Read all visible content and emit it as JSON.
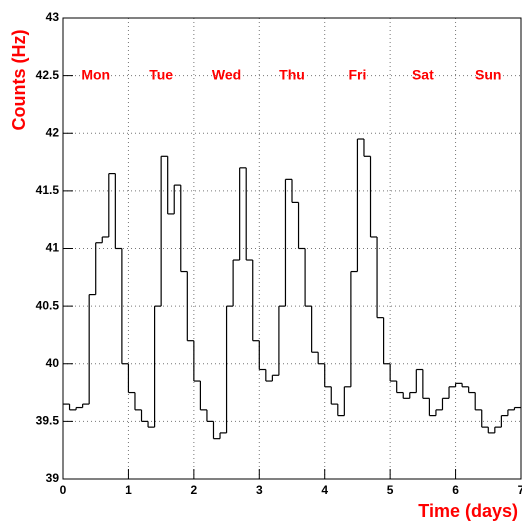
{
  "chart_data": {
    "type": "histogram",
    "x_label": "Time (days)",
    "y_label": "Counts (Hz)",
    "day_labels": [
      "Mon",
      "Tue",
      "Wed",
      "Thu",
      "Fri",
      "Sat",
      "Sun"
    ],
    "bins": [
      0,
      0.1,
      0.2,
      0.3,
      0.4,
      0.5,
      0.6,
      0.7,
      0.8,
      0.9,
      1,
      1.1,
      1.2,
      1.3,
      1.4,
      1.5,
      1.6,
      1.7,
      1.8,
      1.9,
      2,
      2.1,
      2.2,
      2.3,
      2.4,
      2.5,
      2.6,
      2.7,
      2.8,
      2.9,
      3,
      3.1,
      3.2,
      3.3,
      3.4,
      3.5,
      3.6,
      3.7,
      3.8,
      3.9,
      4,
      4.1,
      4.2,
      4.3,
      4.4,
      4.5,
      4.6,
      4.7,
      4.8,
      4.9,
      5,
      5.1,
      5.2,
      5.3,
      5.4,
      5.5,
      5.6,
      5.7,
      5.8,
      5.9,
      6,
      6.1,
      6.2,
      6.3,
      6.4,
      6.5,
      6.6,
      6.7,
      6.8,
      6.9,
      7
    ],
    "values": [
      39.65,
      39.6,
      39.62,
      39.65,
      40.6,
      41.05,
      41.1,
      41.65,
      41.0,
      40.0,
      39.75,
      39.6,
      39.5,
      39.45,
      40.5,
      41.8,
      41.3,
      41.55,
      40.8,
      40.2,
      39.85,
      39.6,
      39.5,
      39.35,
      39.4,
      40.5,
      40.9,
      41.7,
      40.9,
      40.2,
      39.95,
      39.85,
      39.9,
      40.5,
      41.6,
      41.4,
      41.0,
      40.5,
      40.1,
      40.0,
      39.8,
      39.65,
      39.55,
      39.8,
      40.8,
      41.95,
      41.8,
      41.1,
      40.4,
      40.0,
      39.85,
      39.75,
      39.7,
      39.75,
      39.95,
      39.7,
      39.55,
      39.6,
      39.7,
      39.8,
      39.83,
      39.8,
      39.75,
      39.6,
      39.45,
      39.4,
      39.45,
      39.55,
      39.6,
      39.62
    ],
    "color": "#000000",
    "label_color": "#ff0000",
    "xlim": [
      0,
      7
    ],
    "ylim": [
      39,
      43
    ],
    "xticks": [
      0,
      1,
      2,
      3,
      4,
      5,
      6,
      7
    ],
    "yticks": [
      39,
      39.5,
      40,
      40.5,
      41,
      41.5,
      42,
      42.5,
      43
    ],
    "day_label_y": 42.5,
    "grid": true
  }
}
